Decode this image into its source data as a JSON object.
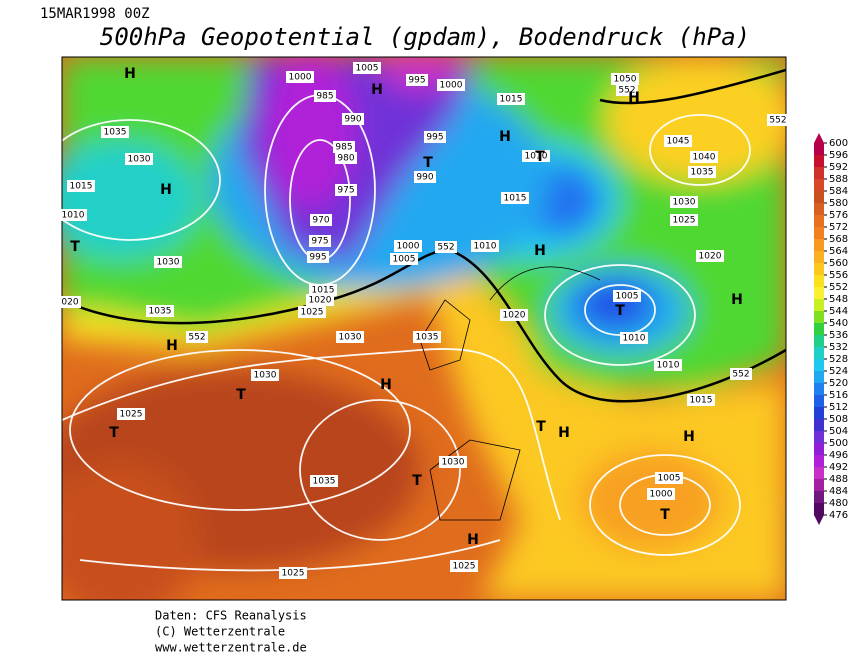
{
  "header": {
    "date": "15MAR1998 00Z",
    "title": "500hPa Geopotential (gpdam), Bodendruck (hPa)"
  },
  "colorbar": {
    "labels": [
      600,
      596,
      592,
      588,
      584,
      580,
      576,
      572,
      568,
      564,
      560,
      556,
      552,
      548,
      544,
      540,
      536,
      532,
      528,
      524,
      520,
      516,
      512,
      508,
      504,
      500,
      496,
      492,
      488,
      484,
      480,
      476
    ],
    "colors": [
      "#b8004a",
      "#c8102e",
      "#d0302a",
      "#d84828",
      "#c8501e",
      "#d86020",
      "#e87020",
      "#f08020",
      "#f89a20",
      "#fbb020",
      "#fcc820",
      "#fce020",
      "#f8f030",
      "#c8f020",
      "#80e020",
      "#30d040",
      "#20d088",
      "#20d0c8",
      "#20c8f0",
      "#20a8f0",
      "#2080f0",
      "#2060e8",
      "#2040d8",
      "#4030d0",
      "#7030d8",
      "#9020d8",
      "#b020d8",
      "#c830c8",
      "#a020a0",
      "#701880",
      "#500860"
    ]
  },
  "map": {
    "labels": [
      "H",
      "1000",
      "1005",
      "995",
      "1000",
      "H",
      "1015",
      "1050",
      "552",
      "H",
      "1035",
      "985",
      "990",
      "995",
      "H",
      "1045",
      "552",
      "1030",
      "985",
      "980",
      "T",
      "990",
      "1010",
      "T",
      "1040",
      "1035",
      "1015",
      "H",
      "975",
      "1015",
      "1030",
      "1010",
      "970",
      "975",
      "995",
      "1025",
      "T",
      "1000",
      "1005",
      "552",
      "1010",
      "H",
      "1020",
      "1030",
      "1015",
      "1020",
      "1025",
      "020",
      "1035",
      "H",
      "552",
      "1030",
      "1035",
      "1020",
      "1005",
      "T",
      "1010",
      "H",
      "1010",
      "552",
      "H",
      "1030",
      "T",
      "1025",
      "T",
      "1015",
      "T",
      "H",
      "H",
      "1030",
      "1035",
      "T",
      "1005",
      "1000",
      "T",
      "H",
      "1025",
      "1025"
    ]
  },
  "footer": {
    "source": "Daten: CFS Reanalysis",
    "copyright": "(C) Wetterzentrale",
    "url": "www.wetterzentrale.de"
  }
}
